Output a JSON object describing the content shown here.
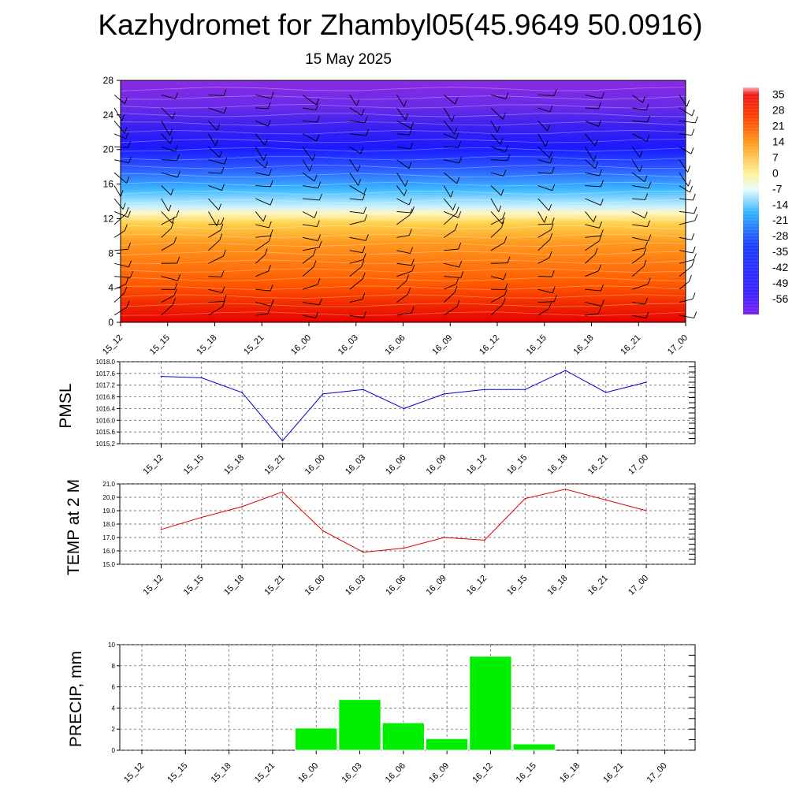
{
  "title": "Kazhydromet for Zhambyl05(45.9649 50.0916)",
  "subtitle": "15 May 2025",
  "chart_data": [
    {
      "type": "heatmap",
      "name": "temperature-height cross section",
      "x": [
        "15_12",
        "15_15",
        "15_18",
        "15_21",
        "16_00",
        "16_03",
        "16_06",
        "16_09",
        "16_12",
        "16_15",
        "16_18",
        "16_21",
        "17_00"
      ],
      "y_ticks": [
        "0",
        "4",
        "8",
        "12",
        "16",
        "20",
        "24",
        "28"
      ],
      "ylim": [
        0,
        28
      ],
      "colorbar_labels": [
        "35",
        "28",
        "21",
        "14",
        "7",
        "0",
        "-7",
        "-14",
        "-21",
        "-28",
        "-35",
        "-42",
        "-49",
        "-56"
      ],
      "colorbar_range": [
        -63,
        38
      ],
      "colors": {
        "hot": "#e60000",
        "orange": "#ff8c1a",
        "yellow": "#fff8b0",
        "cyan": "#33b5ff",
        "blue": "#1a1aff",
        "violet": "#8a2be2"
      }
    },
    {
      "type": "line",
      "ylabel": "PMSL",
      "x": [
        "15_12",
        "15_15",
        "15_18",
        "15_21",
        "16_00",
        "16_03",
        "16_06",
        "16_09",
        "16_12",
        "16_15",
        "16_18",
        "16_21",
        "17_00"
      ],
      "values": [
        1017.5,
        1017.45,
        1016.95,
        1015.3,
        1016.9,
        1017.05,
        1016.4,
        1016.9,
        1017.05,
        1017.05,
        1017.7,
        1016.95,
        1017.3
      ],
      "ylim": [
        1015.2,
        1018.0
      ],
      "y_ticks": [
        "1015.2",
        "1015.6",
        "1016.0",
        "1016.4",
        "1016.8",
        "1017.2",
        "1017.6",
        "1018.0"
      ],
      "color": "#0000cc"
    },
    {
      "type": "line",
      "ylabel": "TEMP at 2 M",
      "x": [
        "15_12",
        "15_15",
        "15_18",
        "15_21",
        "16_00",
        "16_03",
        "16_06",
        "16_09",
        "16_12",
        "16_15",
        "16_18",
        "16_21",
        "17_00"
      ],
      "values": [
        17.6,
        18.5,
        19.3,
        20.4,
        17.5,
        15.9,
        16.2,
        17.0,
        16.8,
        19.9,
        20.6,
        19.8,
        19.0
      ],
      "ylim": [
        15.0,
        21.0
      ],
      "y_ticks": [
        "15.0",
        "16.0",
        "17.0",
        "18.0",
        "19.0",
        "20.0",
        "21.0"
      ],
      "color": "#dd0000"
    },
    {
      "type": "bar",
      "ylabel": "PRECIP, mm",
      "x": [
        "15_12",
        "15_15",
        "15_18",
        "15_21",
        "16_00",
        "16_03",
        "16_06",
        "16_09",
        "16_12",
        "16_15",
        "16_18",
        "16_21",
        "17_00"
      ],
      "values": [
        0,
        0,
        0,
        0,
        2.1,
        4.8,
        2.6,
        1.1,
        8.9,
        0.6,
        0,
        0,
        0
      ],
      "ylim": [
        0,
        10
      ],
      "y_ticks": [
        "0",
        "2",
        "4",
        "6",
        "8",
        "10"
      ],
      "color": "#00ee00"
    }
  ]
}
